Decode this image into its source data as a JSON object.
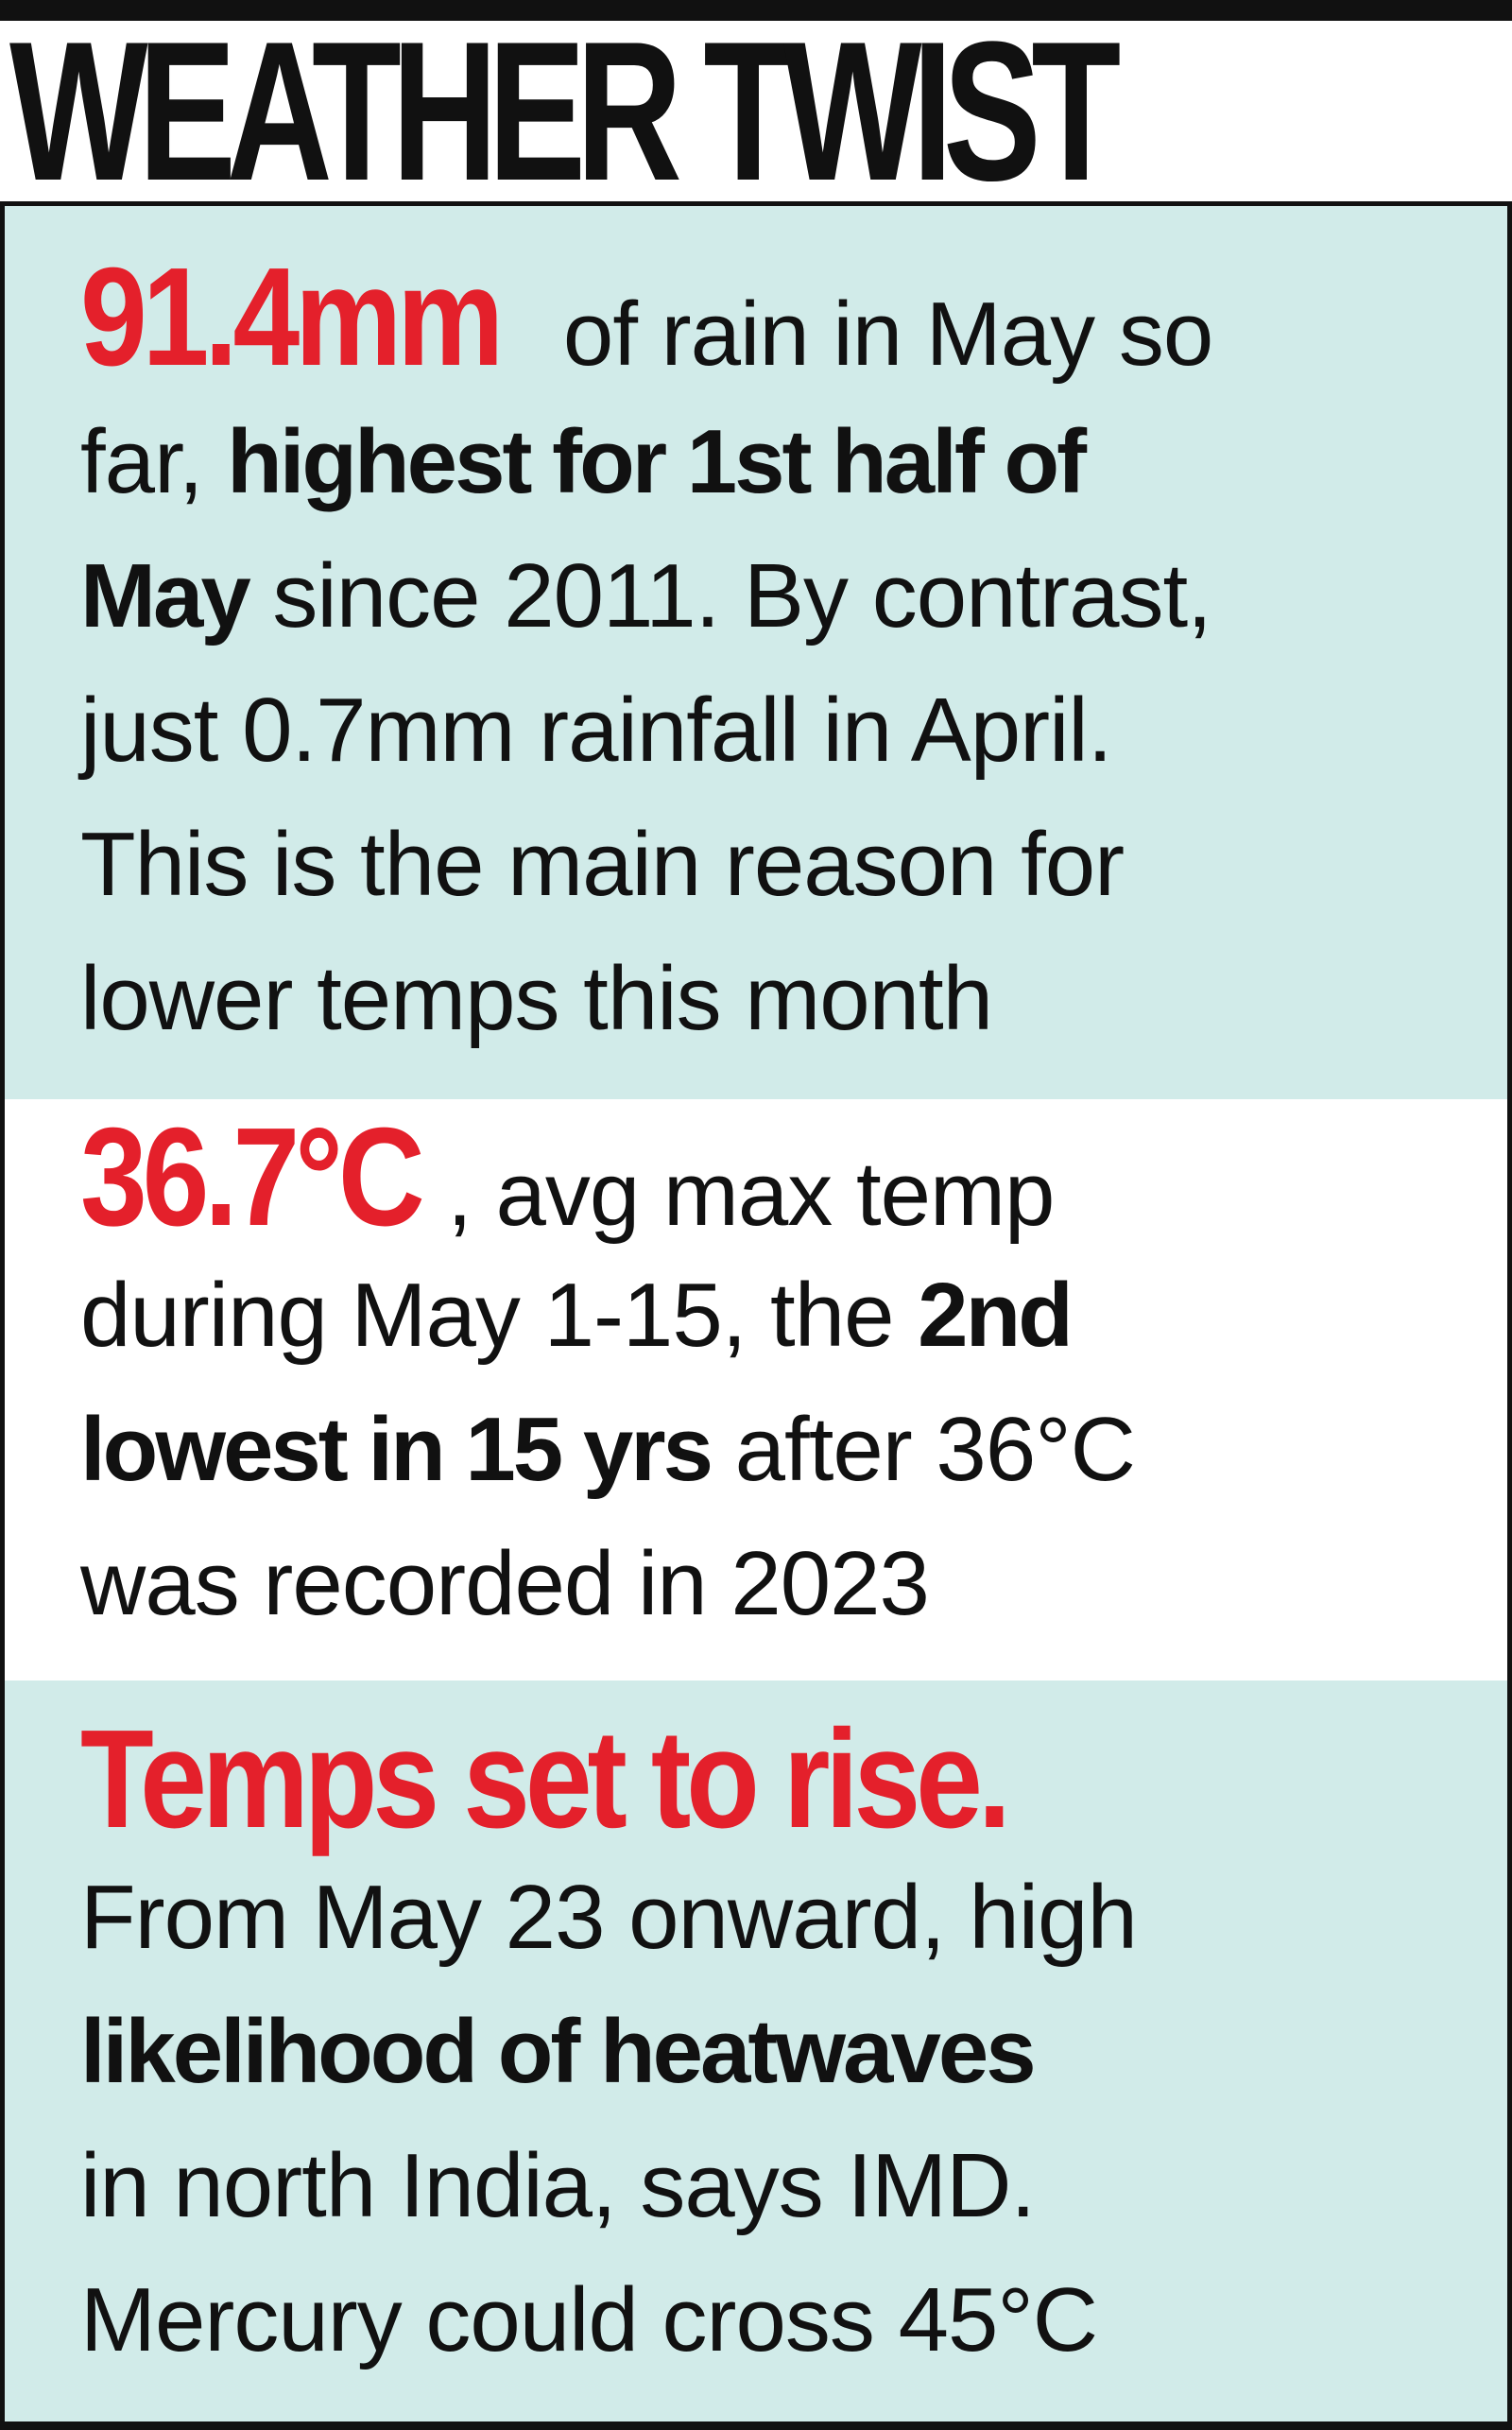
{
  "title": "WEATHER TWIST",
  "colors": {
    "accent": "#e4202b",
    "panel": "#d1ebe9",
    "ink": "#111111"
  },
  "section1": {
    "highlight": "91.4mm",
    "l1_rest": " of rain in May so",
    "l2_pre": "far, ",
    "l2_bold": "highest for 1st half of",
    "l3_bold": "May",
    "l3_rest": " since 2011. By contrast,",
    "l4": "just 0.7mm rainfall in April.",
    "l5": "This is the main reason for",
    "l6": "lower temps this month"
  },
  "section2": {
    "highlight": "36.7°C",
    "l1_rest": ", avg max temp",
    "l2_pre": "during May 1-15, the ",
    "l2_bold": "2nd",
    "l3_bold": "lowest in 15 yrs",
    "l3_rest": " after 36°C",
    "l4": "was recorded in 2023"
  },
  "section3": {
    "highlight": "Temps set to rise.",
    "l2": "From May 23 onward, high",
    "l3_bold": "likelihood of heatwaves",
    "l4": "in north India, says IMD.",
    "l5": "Mercury could cross 45°C"
  }
}
